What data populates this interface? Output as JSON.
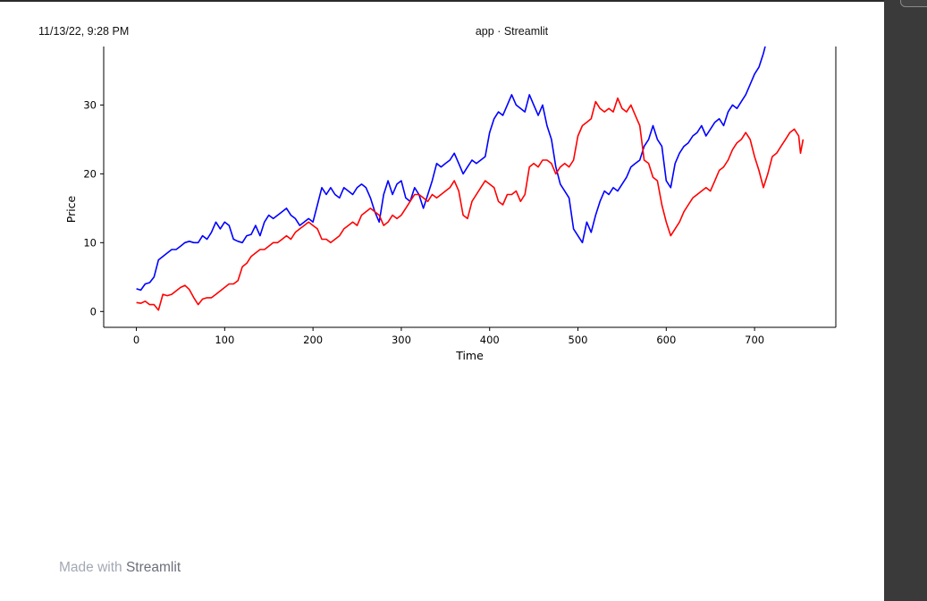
{
  "header": {
    "datetime": "11/13/22, 9:28 PM",
    "title": "app · Streamlit"
  },
  "footer": {
    "made_with": "Made with",
    "brand": "Streamlit"
  },
  "colors": {
    "series_blue": "#0000ff",
    "series_red": "#ff0000",
    "axis": "#000000"
  },
  "chart_data": {
    "type": "line",
    "title": "",
    "xlabel": "Time",
    "ylabel": "Price",
    "xlim": [
      -37,
      792
    ],
    "ylim": [
      -2.3,
      38.5
    ],
    "xticks": [
      0,
      100,
      200,
      300,
      400,
      500,
      600,
      700
    ],
    "yticks": [
      0,
      10,
      20,
      30
    ],
    "grid": false,
    "legend": "none",
    "series": [
      {
        "color": "#0000ff",
        "points": [
          [
            0,
            3.3
          ],
          [
            5,
            3.1
          ],
          [
            10,
            4.0
          ],
          [
            15,
            4.2
          ],
          [
            20,
            5.0
          ],
          [
            25,
            7.5
          ],
          [
            30,
            8.0
          ],
          [
            35,
            8.5
          ],
          [
            40,
            9.0
          ],
          [
            45,
            9.0
          ],
          [
            50,
            9.5
          ],
          [
            55,
            10.0
          ],
          [
            60,
            10.2
          ],
          [
            65,
            10.0
          ],
          [
            70,
            10.0
          ],
          [
            75,
            11.0
          ],
          [
            80,
            10.5
          ],
          [
            85,
            11.5
          ],
          [
            90,
            13.0
          ],
          [
            95,
            12.0
          ],
          [
            100,
            13.0
          ],
          [
            105,
            12.5
          ],
          [
            110,
            10.5
          ],
          [
            115,
            10.2
          ],
          [
            120,
            10.0
          ],
          [
            125,
            11.0
          ],
          [
            130,
            11.2
          ],
          [
            135,
            12.5
          ],
          [
            140,
            11.0
          ],
          [
            145,
            13.0
          ],
          [
            150,
            14.0
          ],
          [
            155,
            13.5
          ],
          [
            160,
            14.0
          ],
          [
            165,
            14.5
          ],
          [
            170,
            15.0
          ],
          [
            175,
            14.0
          ],
          [
            180,
            13.5
          ],
          [
            185,
            12.5
          ],
          [
            190,
            13.0
          ],
          [
            195,
            13.5
          ],
          [
            200,
            13.0
          ],
          [
            205,
            15.5
          ],
          [
            210,
            18.0
          ],
          [
            215,
            17.0
          ],
          [
            220,
            18.0
          ],
          [
            225,
            17.0
          ],
          [
            230,
            16.5
          ],
          [
            235,
            18.0
          ],
          [
            240,
            17.5
          ],
          [
            245,
            17.0
          ],
          [
            250,
            18.0
          ],
          [
            255,
            18.5
          ],
          [
            260,
            18.0
          ],
          [
            265,
            16.5
          ],
          [
            270,
            14.5
          ],
          [
            275,
            13.0
          ],
          [
            280,
            17.0
          ],
          [
            285,
            19.0
          ],
          [
            290,
            17.0
          ],
          [
            295,
            18.5
          ],
          [
            300,
            19.0
          ],
          [
            305,
            16.5
          ],
          [
            310,
            16.0
          ],
          [
            315,
            18.0
          ],
          [
            320,
            17.0
          ],
          [
            325,
            15.0
          ],
          [
            330,
            17.0
          ],
          [
            335,
            19.0
          ],
          [
            340,
            21.5
          ],
          [
            345,
            21.0
          ],
          [
            350,
            21.5
          ],
          [
            355,
            22.0
          ],
          [
            360,
            23.0
          ],
          [
            365,
            21.5
          ],
          [
            370,
            20.0
          ],
          [
            375,
            21.0
          ],
          [
            380,
            22.0
          ],
          [
            385,
            21.5
          ],
          [
            390,
            22.0
          ],
          [
            395,
            22.5
          ],
          [
            400,
            26.0
          ],
          [
            405,
            28.0
          ],
          [
            410,
            29.0
          ],
          [
            415,
            28.5
          ],
          [
            420,
            30.0
          ],
          [
            425,
            31.5
          ],
          [
            430,
            30.0
          ],
          [
            435,
            29.5
          ],
          [
            440,
            29.0
          ],
          [
            445,
            31.5
          ],
          [
            450,
            30.0
          ],
          [
            455,
            28.5
          ],
          [
            460,
            30.0
          ],
          [
            465,
            27.0
          ],
          [
            470,
            25.0
          ],
          [
            475,
            21.0
          ],
          [
            480,
            18.5
          ],
          [
            485,
            17.5
          ],
          [
            490,
            16.5
          ],
          [
            495,
            12.0
          ],
          [
            500,
            11.0
          ],
          [
            505,
            10.0
          ],
          [
            510,
            13.0
          ],
          [
            515,
            11.5
          ],
          [
            520,
            14.0
          ],
          [
            525,
            16.0
          ],
          [
            530,
            17.5
          ],
          [
            535,
            17.0
          ],
          [
            540,
            18.0
          ],
          [
            545,
            17.5
          ],
          [
            550,
            18.5
          ],
          [
            555,
            19.5
          ],
          [
            560,
            21.0
          ],
          [
            565,
            21.5
          ],
          [
            570,
            22.0
          ],
          [
            575,
            24.0
          ],
          [
            580,
            25.0
          ],
          [
            585,
            27.0
          ],
          [
            590,
            25.0
          ],
          [
            595,
            24.0
          ],
          [
            600,
            19.0
          ],
          [
            605,
            18.0
          ],
          [
            610,
            21.5
          ],
          [
            615,
            23.0
          ],
          [
            620,
            24.0
          ],
          [
            625,
            24.5
          ],
          [
            630,
            25.5
          ],
          [
            635,
            26.0
          ],
          [
            640,
            27.0
          ],
          [
            645,
            25.5
          ],
          [
            650,
            26.5
          ],
          [
            655,
            27.5
          ],
          [
            660,
            28.0
          ],
          [
            665,
            27.0
          ],
          [
            670,
            29.0
          ],
          [
            675,
            30.0
          ],
          [
            680,
            29.5
          ],
          [
            685,
            30.5
          ],
          [
            690,
            31.5
          ],
          [
            695,
            33.0
          ],
          [
            700,
            34.5
          ],
          [
            705,
            35.5
          ],
          [
            710,
            37.5
          ],
          [
            715,
            40.0
          ]
        ]
      },
      {
        "color": "#ff0000",
        "points": [
          [
            0,
            1.3
          ],
          [
            5,
            1.2
          ],
          [
            10,
            1.5
          ],
          [
            15,
            1.0
          ],
          [
            20,
            1.0
          ],
          [
            25,
            0.2
          ],
          [
            30,
            2.5
          ],
          [
            35,
            2.3
          ],
          [
            40,
            2.5
          ],
          [
            45,
            3.0
          ],
          [
            50,
            3.5
          ],
          [
            55,
            3.8
          ],
          [
            60,
            3.2
          ],
          [
            65,
            2.0
          ],
          [
            70,
            1.0
          ],
          [
            75,
            1.8
          ],
          [
            80,
            2.0
          ],
          [
            85,
            2.0
          ],
          [
            90,
            2.5
          ],
          [
            95,
            3.0
          ],
          [
            100,
            3.5
          ],
          [
            105,
            4.0
          ],
          [
            110,
            4.0
          ],
          [
            115,
            4.5
          ],
          [
            120,
            6.5
          ],
          [
            125,
            7.0
          ],
          [
            130,
            8.0
          ],
          [
            135,
            8.5
          ],
          [
            140,
            9.0
          ],
          [
            145,
            9.0
          ],
          [
            150,
            9.5
          ],
          [
            155,
            10.0
          ],
          [
            160,
            10.0
          ],
          [
            165,
            10.5
          ],
          [
            170,
            11.0
          ],
          [
            175,
            10.5
          ],
          [
            180,
            11.5
          ],
          [
            185,
            12.0
          ],
          [
            190,
            12.5
          ],
          [
            195,
            13.0
          ],
          [
            200,
            12.5
          ],
          [
            205,
            12.0
          ],
          [
            210,
            10.5
          ],
          [
            215,
            10.5
          ],
          [
            220,
            10.0
          ],
          [
            225,
            10.5
          ],
          [
            230,
            11.0
          ],
          [
            235,
            12.0
          ],
          [
            240,
            12.5
          ],
          [
            245,
            13.0
          ],
          [
            250,
            12.5
          ],
          [
            255,
            14.0
          ],
          [
            260,
            14.5
          ],
          [
            265,
            15.0
          ],
          [
            270,
            14.5
          ],
          [
            275,
            14.0
          ],
          [
            280,
            12.5
          ],
          [
            285,
            13.0
          ],
          [
            290,
            14.0
          ],
          [
            295,
            13.5
          ],
          [
            300,
            14.0
          ],
          [
            305,
            15.0
          ],
          [
            310,
            16.0
          ],
          [
            315,
            17.0
          ],
          [
            320,
            17.0
          ],
          [
            325,
            16.5
          ],
          [
            330,
            16.0
          ],
          [
            335,
            17.0
          ],
          [
            340,
            16.5
          ],
          [
            345,
            17.0
          ],
          [
            350,
            17.5
          ],
          [
            355,
            18.0
          ],
          [
            360,
            19.0
          ],
          [
            365,
            17.5
          ],
          [
            370,
            14.0
          ],
          [
            375,
            13.5
          ],
          [
            380,
            16.0
          ],
          [
            385,
            17.0
          ],
          [
            390,
            18.0
          ],
          [
            395,
            19.0
          ],
          [
            400,
            18.5
          ],
          [
            405,
            18.0
          ],
          [
            410,
            16.0
          ],
          [
            415,
            15.5
          ],
          [
            420,
            17.0
          ],
          [
            425,
            17.0
          ],
          [
            430,
            17.5
          ],
          [
            435,
            16.0
          ],
          [
            440,
            17.0
          ],
          [
            445,
            21.0
          ],
          [
            450,
            21.5
          ],
          [
            455,
            21.0
          ],
          [
            460,
            22.0
          ],
          [
            465,
            22.0
          ],
          [
            470,
            21.5
          ],
          [
            475,
            20.0
          ],
          [
            480,
            21.0
          ],
          [
            485,
            21.5
          ],
          [
            490,
            21.0
          ],
          [
            495,
            22.0
          ],
          [
            500,
            25.5
          ],
          [
            505,
            27.0
          ],
          [
            510,
            27.5
          ],
          [
            515,
            28.0
          ],
          [
            520,
            30.5
          ],
          [
            525,
            29.5
          ],
          [
            530,
            29.0
          ],
          [
            535,
            29.5
          ],
          [
            540,
            29.0
          ],
          [
            545,
            31.0
          ],
          [
            550,
            29.5
          ],
          [
            555,
            29.0
          ],
          [
            560,
            30.0
          ],
          [
            565,
            28.5
          ],
          [
            570,
            27.0
          ],
          [
            575,
            22.0
          ],
          [
            580,
            21.5
          ],
          [
            585,
            19.5
          ],
          [
            590,
            19.0
          ],
          [
            595,
            15.5
          ],
          [
            600,
            13.0
          ],
          [
            605,
            11.0
          ],
          [
            610,
            12.0
          ],
          [
            615,
            13.0
          ],
          [
            620,
            14.5
          ],
          [
            625,
            15.5
          ],
          [
            630,
            16.5
          ],
          [
            635,
            17.0
          ],
          [
            640,
            17.5
          ],
          [
            645,
            18.0
          ],
          [
            650,
            17.5
          ],
          [
            655,
            19.0
          ],
          [
            660,
            20.5
          ],
          [
            665,
            21.0
          ],
          [
            670,
            22.0
          ],
          [
            675,
            23.5
          ],
          [
            680,
            24.5
          ],
          [
            685,
            25.0
          ],
          [
            690,
            26.0
          ],
          [
            695,
            25.0
          ],
          [
            700,
            22.5
          ],
          [
            705,
            20.5
          ],
          [
            710,
            18.0
          ],
          [
            715,
            20.0
          ],
          [
            720,
            22.5
          ],
          [
            725,
            23.0
          ],
          [
            730,
            24.0
          ],
          [
            735,
            25.0
          ],
          [
            740,
            26.0
          ],
          [
            745,
            26.5
          ],
          [
            750,
            25.5
          ],
          [
            752,
            23.0
          ],
          [
            755,
            25.0
          ]
        ]
      }
    ]
  }
}
